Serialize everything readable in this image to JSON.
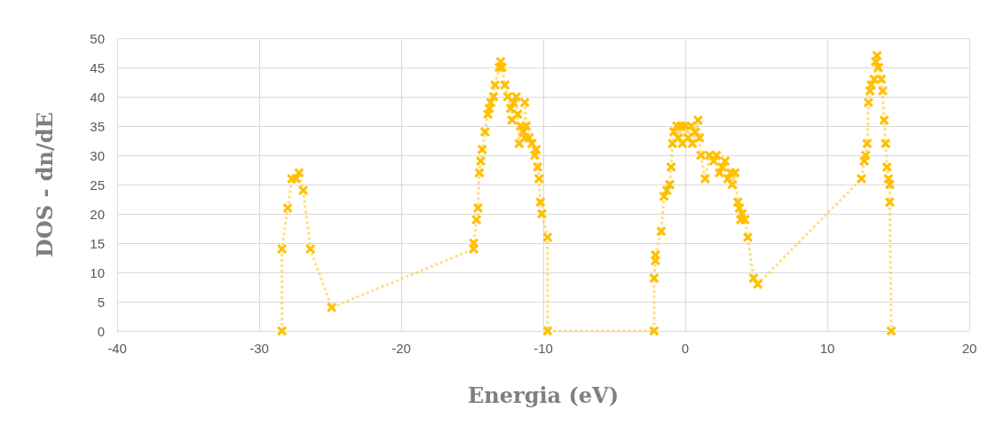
{
  "chart_data": {
    "type": "line",
    "xlabel": "Energia (eV)",
    "ylabel": "DOS - dn/dE",
    "xlim": [
      -40,
      20
    ],
    "xticks": [
      -40,
      -30,
      -20,
      -10,
      0,
      10,
      20
    ],
    "ylim": [
      0,
      50
    ],
    "yticks": [
      0,
      5,
      10,
      15,
      20,
      25,
      30,
      35,
      40,
      45,
      50
    ],
    "grid": true,
    "marker": "cross",
    "line_style": "dotted",
    "series": [
      {
        "color": "#ffc000",
        "x": [
          -28.4,
          -28.4,
          -28.0,
          -27.7,
          -27.4,
          -27.2,
          -26.9,
          -26.4,
          -24.9,
          -14.9,
          -14.9,
          -14.7,
          -14.6,
          -14.5,
          -14.4,
          -14.3,
          -14.1,
          -13.9,
          -13.8,
          -13.7,
          -13.5,
          -13.4,
          -13.1,
          -13.0,
          -12.9,
          -12.7,
          -12.5,
          -12.3,
          -12.2,
          -12.1,
          -11.9,
          -11.8,
          -11.7,
          -11.6,
          -11.4,
          -11.3,
          -11.3,
          -11.2,
          -11.0,
          -10.8,
          -10.6,
          -10.5,
          -10.4,
          -10.3,
          -10.2,
          -10.1,
          -9.7,
          -9.7,
          -2.2,
          -2.2,
          -2.1,
          -2.1,
          -1.7,
          -1.5,
          -1.3,
          -1.1,
          -1.0,
          -0.9,
          -0.8,
          -0.6,
          -0.5,
          -0.3,
          -0.2,
          0.0,
          0.2,
          0.4,
          0.5,
          0.7,
          0.9,
          1.0,
          1.1,
          1.4,
          1.7,
          2.0,
          2.2,
          2.4,
          2.6,
          2.8,
          3.0,
          3.2,
          3.3,
          3.5,
          3.7,
          3.8,
          3.9,
          4.0,
          4.2,
          4.4,
          4.8,
          5.1,
          12.4,
          12.6,
          12.7,
          12.8,
          12.9,
          13.0,
          13.1,
          13.3,
          13.4,
          13.5,
          13.6,
          13.8,
          13.9,
          14.0,
          14.1,
          14.2,
          14.3,
          14.4,
          14.4,
          14.5
        ],
        "values": [
          0,
          14,
          21,
          26,
          26,
          27,
          24,
          14,
          4,
          14,
          15,
          19,
          21,
          27,
          29,
          31,
          34,
          37,
          38,
          39,
          40,
          42,
          45,
          46,
          45,
          42,
          40,
          38,
          36,
          39,
          40,
          37,
          32,
          35,
          34,
          33,
          39,
          35,
          33,
          32,
          30,
          31,
          28,
          26,
          22,
          20,
          16,
          0,
          0,
          9,
          12,
          13,
          17,
          23,
          24,
          25,
          28,
          32,
          34,
          35,
          33,
          35,
          32,
          35,
          33,
          35,
          32,
          34,
          36,
          33,
          30,
          26,
          30,
          29,
          30,
          27,
          28,
          29,
          26,
          27,
          25,
          27,
          22,
          21,
          19,
          20,
          19,
          16,
          9,
          8,
          26,
          29,
          30,
          32,
          39,
          41,
          42,
          43,
          46,
          47,
          45,
          43,
          41,
          36,
          32,
          28,
          26,
          25,
          22,
          0
        ]
      }
    ]
  }
}
